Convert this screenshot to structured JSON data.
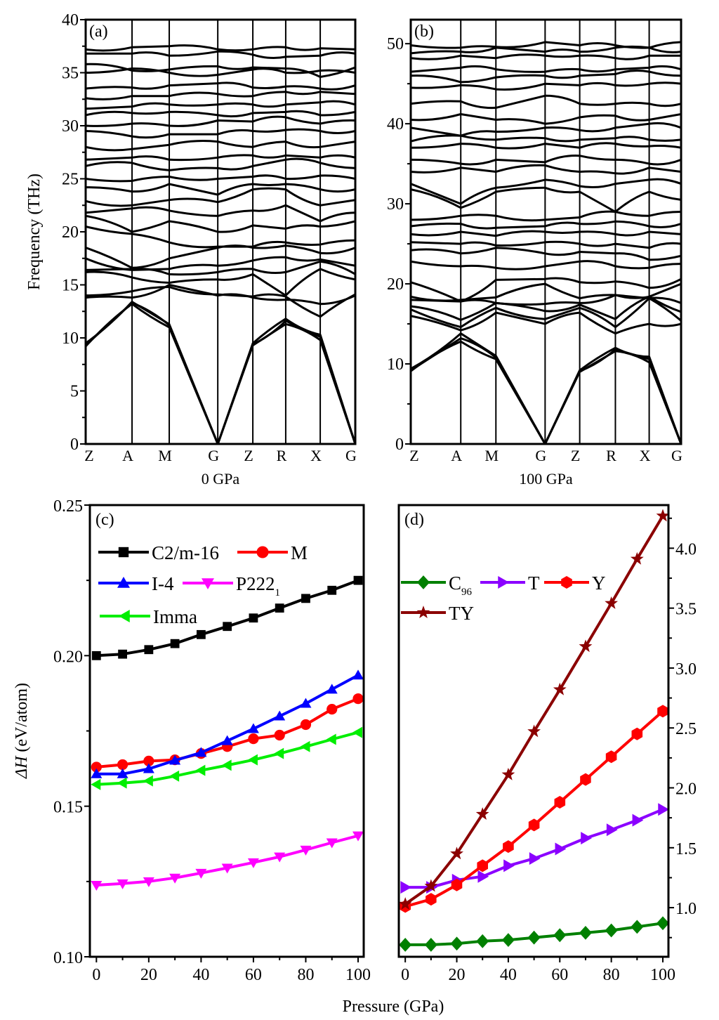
{
  "figure": {
    "panels": [
      "(a)",
      "(b)",
      "(c)",
      "(d)"
    ]
  },
  "chart_data": [
    {
      "id": "a",
      "type": "line",
      "title": "",
      "panel_label": "(a)",
      "subtitle": "0 GPa",
      "xlabel": "",
      "ylabel": "Frequency (THz)",
      "ylim": [
        0,
        40
      ],
      "yticks": [
        0,
        5,
        10,
        15,
        20,
        25,
        30,
        35,
        40
      ],
      "kpoints": [
        "Z",
        "A",
        "M",
        "G",
        "Z",
        "R",
        "X",
        "G"
      ],
      "kpoint_positions": [
        0,
        0.172,
        0.31,
        0.49,
        0.62,
        0.742,
        0.87,
        1.0
      ],
      "grid": "vertical lines at k-points",
      "bands": [
        [
          9.2,
          13.2,
          11.0,
          0.0,
          9.3,
          11.3,
          9.8,
          0.0
        ],
        [
          9.3,
          13.3,
          11.2,
          0.0,
          9.4,
          11.6,
          10.1,
          0.0
        ],
        [
          9.5,
          13.4,
          11.3,
          0.0,
          9.5,
          11.8,
          10.3,
          0.0
        ],
        [
          13.8,
          13.8,
          15.0,
          14.0,
          13.8,
          13.6,
          13.2,
          14.0
        ],
        [
          14.0,
          14.4,
          14.8,
          14.1,
          13.9,
          13.9,
          12.0,
          14.1
        ],
        [
          16.2,
          15.7,
          15.2,
          15.5,
          16.0,
          14.0,
          16.5,
          15.5
        ],
        [
          16.4,
          16.5,
          16.0,
          16.2,
          16.5,
          16.2,
          17.2,
          16.0
        ],
        [
          17.5,
          16.4,
          16.5,
          16.8,
          17.3,
          17.6,
          17.4,
          16.8
        ],
        [
          18.5,
          16.6,
          17.5,
          18.5,
          18.5,
          18.7,
          18.0,
          18.5
        ],
        [
          20.5,
          19.8,
          19.0,
          18.6,
          18.6,
          19.0,
          18.8,
          19.2
        ],
        [
          21.5,
          20.0,
          21.0,
          20.0,
          20.6,
          20.3,
          20.5,
          21.0
        ],
        [
          21.8,
          22.2,
          22.0,
          21.5,
          22.0,
          22.5,
          21.0,
          21.8
        ],
        [
          22.9,
          22.5,
          23.0,
          22.8,
          24.0,
          24.0,
          22.5,
          23.0
        ],
        [
          24.2,
          23.8,
          24.5,
          23.5,
          24.5,
          24.5,
          24.0,
          24.0
        ],
        [
          25.0,
          24.8,
          25.2,
          25.0,
          25.2,
          25.0,
          25.3,
          25.0
        ],
        [
          26.2,
          26.5,
          25.8,
          26.0,
          26.2,
          26.8,
          26.5,
          26.0
        ],
        [
          26.8,
          27.0,
          26.8,
          27.0,
          27.2,
          27.2,
          27.0,
          27.0
        ],
        [
          28.0,
          27.8,
          28.2,
          28.5,
          28.0,
          28.5,
          28.0,
          28.5
        ],
        [
          29.5,
          29.0,
          29.2,
          29.2,
          29.5,
          29.6,
          29.5,
          29.5
        ],
        [
          30.0,
          30.2,
          30.0,
          30.5,
          30.4,
          30.8,
          30.2,
          30.5
        ],
        [
          31.0,
          31.2,
          31.3,
          31.0,
          31.2,
          31.3,
          31.0,
          31.3
        ],
        [
          31.6,
          31.8,
          32.0,
          32.0,
          32.0,
          32.0,
          32.2,
          32.0
        ],
        [
          32.6,
          32.8,
          32.8,
          33.0,
          32.8,
          33.2,
          33.2,
          33.0
        ],
        [
          33.5,
          33.6,
          33.8,
          34.0,
          33.6,
          33.7,
          33.5,
          33.8
        ],
        [
          35.0,
          35.4,
          35.0,
          34.8,
          35.3,
          35.0,
          35.2,
          35.0
        ],
        [
          35.8,
          35.2,
          35.3,
          35.6,
          35.5,
          35.4,
          34.6,
          35.5
        ],
        [
          36.8,
          36.8,
          36.6,
          37.0,
          36.7,
          36.5,
          36.6,
          36.8
        ],
        [
          37.2,
          37.4,
          37.5,
          37.2,
          37.2,
          37.4,
          37.3,
          37.2
        ]
      ]
    },
    {
      "id": "b",
      "type": "line",
      "title": "",
      "panel_label": "(b)",
      "subtitle": "100 GPa",
      "xlabel": "",
      "ylabel": "",
      "ylim": [
        0,
        53
      ],
      "yticks": [
        0,
        10,
        20,
        30,
        40,
        50
      ],
      "kpoints": [
        "Z",
        "A",
        "M",
        "G",
        "Z",
        "R",
        "X",
        "G"
      ],
      "kpoint_positions": [
        0,
        0.185,
        0.315,
        0.497,
        0.625,
        0.757,
        0.882,
        1.0
      ],
      "grid": "vertical lines at k-points",
      "bands": [
        [
          9.1,
          12.8,
          10.6,
          0.0,
          9.0,
          11.6,
          10.2,
          0.0
        ],
        [
          9.2,
          13.2,
          10.8,
          0.0,
          9.1,
          11.8,
          10.6,
          0.0
        ],
        [
          9.4,
          13.8,
          11.0,
          0.0,
          9.2,
          12.0,
          10.9,
          0.0
        ],
        [
          16.0,
          14.2,
          16.4,
          15.0,
          16.4,
          13.8,
          15.0,
          15.0
        ],
        [
          16.8,
          14.6,
          17.0,
          15.6,
          17.0,
          14.6,
          18.2,
          15.4
        ],
        [
          17.2,
          15.5,
          17.6,
          16.6,
          17.4,
          15.6,
          18.4,
          16.5
        ],
        [
          18.0,
          17.8,
          17.6,
          17.5,
          17.6,
          18.6,
          18.2,
          17.6
        ],
        [
          18.4,
          18.0,
          18.3,
          20.0,
          18.2,
          18.6,
          18.4,
          20.0
        ],
        [
          20.2,
          17.8,
          20.5,
          20.6,
          20.2,
          20.3,
          19.5,
          20.6
        ],
        [
          22.8,
          22.2,
          22.0,
          22.2,
          22.8,
          22.2,
          22.0,
          22.5
        ],
        [
          24.2,
          23.8,
          24.5,
          23.8,
          24.0,
          23.8,
          23.0,
          23.5
        ],
        [
          25.2,
          25.0,
          24.8,
          25.2,
          25.0,
          25.0,
          24.5,
          25.0
        ],
        [
          26.2,
          26.5,
          26.0,
          26.5,
          26.5,
          26.2,
          26.5,
          26.2
        ],
        [
          27.2,
          27.5,
          27.0,
          27.2,
          27.5,
          27.8,
          27.2,
          27.5
        ],
        [
          28.0,
          28.5,
          28.5,
          28.0,
          28.3,
          29.0,
          28.5,
          29.0
        ],
        [
          31.8,
          29.5,
          31.5,
          32.0,
          31.5,
          29.0,
          31.5,
          30.5
        ],
        [
          32.5,
          30.0,
          32.0,
          33.0,
          32.2,
          32.5,
          33.0,
          32.5
        ],
        [
          34.0,
          34.5,
          34.0,
          34.8,
          34.0,
          33.8,
          34.5,
          34.0
        ],
        [
          35.5,
          35.0,
          35.5,
          35.2,
          36.0,
          35.5,
          35.0,
          35.5
        ],
        [
          37.0,
          37.5,
          37.0,
          37.5,
          37.0,
          37.5,
          37.2,
          37.0
        ],
        [
          37.8,
          38.5,
          38.0,
          38.2,
          38.0,
          38.2,
          38.0,
          38.0
        ],
        [
          39.5,
          38.5,
          39.0,
          39.5,
          39.2,
          39.5,
          40.0,
          39.5
        ],
        [
          40.5,
          41.2,
          40.5,
          40.0,
          40.8,
          41.0,
          40.5,
          41.2
        ],
        [
          42.5,
          42.8,
          42.0,
          43.5,
          42.5,
          42.5,
          42.5,
          42.5
        ],
        [
          44.5,
          44.8,
          44.3,
          45.0,
          44.8,
          44.8,
          45.0,
          45.0
        ],
        [
          46.0,
          45.2,
          45.8,
          46.0,
          46.0,
          46.2,
          46.5,
          46.0
        ],
        [
          46.5,
          47.0,
          46.8,
          46.5,
          46.8,
          46.8,
          47.0,
          46.8
        ],
        [
          48.2,
          48.5,
          48.2,
          48.5,
          48.5,
          48.2,
          48.5,
          48.5
        ],
        [
          48.8,
          49.0,
          49.5,
          49.0,
          49.0,
          49.5,
          49.5,
          49.0
        ],
        [
          49.8,
          49.5,
          49.6,
          50.2,
          49.8,
          49.8,
          49.5,
          50.2
        ]
      ]
    },
    {
      "id": "c",
      "type": "line",
      "title": "",
      "panel_label": "(c)",
      "xlabel": "Pressure (GPa)",
      "ylabel": "ΔH (eV/atom)",
      "xlim": [
        -2.5,
        100
      ],
      "ylim": [
        0.1,
        0.25
      ],
      "xticks": [
        0,
        20,
        40,
        60,
        80,
        100
      ],
      "yticks": [
        0.1,
        0.15,
        0.2,
        0.25
      ],
      "ytick_labels": [
        "0.10",
        "0.15",
        "0.20",
        "0.25"
      ],
      "legend_position": "top-left",
      "x": [
        0,
        10,
        20,
        30,
        40,
        50,
        60,
        70,
        80,
        90,
        100
      ],
      "series": [
        {
          "name": "C2/m-16",
          "color": "#000000",
          "marker": "square",
          "values": [
            0.2,
            0.2005,
            0.202,
            0.204,
            0.207,
            0.2097,
            0.2125,
            0.2158,
            0.219,
            0.2217,
            0.225
          ]
        },
        {
          "name": "M",
          "color": "#ff0000",
          "marker": "circle",
          "values": [
            0.163,
            0.1638,
            0.165,
            0.1654,
            0.1675,
            0.1698,
            0.1724,
            0.1736,
            0.1771,
            0.1822,
            0.1857
          ]
        },
        {
          "name": "I-4",
          "color": "#0000ff",
          "marker": "triangle-up",
          "values": [
            0.1607,
            0.1607,
            0.1624,
            0.1652,
            0.1678,
            0.1717,
            0.1757,
            0.1799,
            0.1841,
            0.1888,
            0.1935
          ]
        },
        {
          "name": "P222",
          "name_subscript": "1",
          "color": "#ff00ff",
          "marker": "triangle-down",
          "values": [
            0.1238,
            0.1243,
            0.125,
            0.1262,
            0.1278,
            0.1295,
            0.1313,
            0.1332,
            0.1355,
            0.1379,
            0.1402
          ]
        },
        {
          "name": "Imma",
          "color": "#00ee00",
          "marker": "triangle-left",
          "values": [
            0.1572,
            0.1577,
            0.1584,
            0.16,
            0.1619,
            0.1636,
            0.1654,
            0.1675,
            0.1698,
            0.1722,
            0.1745
          ]
        }
      ]
    },
    {
      "id": "d",
      "type": "line",
      "title": "",
      "panel_label": "(d)",
      "xlabel": "Pressure (GPa)",
      "ylabel": "",
      "yaxis_side": "right",
      "xlim": [
        -2.5,
        100
      ],
      "ylim": [
        0.59,
        4.36
      ],
      "xticks": [
        0,
        20,
        40,
        60,
        80,
        100
      ],
      "yticks": [
        1.0,
        1.5,
        2.0,
        2.5,
        3.0,
        3.5,
        4.0
      ],
      "ytick_labels": [
        "1.0",
        "1.5",
        "2.0",
        "2.5",
        "3.0",
        "3.5",
        "4.0"
      ],
      "legend_position": "upper-left",
      "x": [
        0,
        10,
        20,
        30,
        40,
        50,
        60,
        70,
        80,
        90,
        100
      ],
      "series": [
        {
          "name": "C",
          "name_subscript": "96",
          "color": "#008000",
          "marker": "diamond",
          "values": [
            0.69,
            0.69,
            0.7,
            0.72,
            0.73,
            0.75,
            0.77,
            0.79,
            0.81,
            0.84,
            0.87
          ]
        },
        {
          "name": "T",
          "color": "#8b00ff",
          "marker": "triangle-right",
          "values": [
            1.17,
            1.17,
            1.23,
            1.26,
            1.35,
            1.41,
            1.49,
            1.58,
            1.65,
            1.73,
            1.82
          ]
        },
        {
          "name": "Y",
          "color": "#ff0000",
          "marker": "hexagon",
          "values": [
            1.01,
            1.07,
            1.19,
            1.35,
            1.51,
            1.69,
            1.88,
            2.07,
            2.26,
            2.45,
            2.64
          ]
        },
        {
          "name": "TY",
          "color": "#8b0000",
          "marker": "star",
          "values": [
            1.03,
            1.18,
            1.45,
            1.78,
            2.11,
            2.47,
            2.82,
            3.18,
            3.54,
            3.91,
            4.27
          ]
        }
      ]
    }
  ]
}
